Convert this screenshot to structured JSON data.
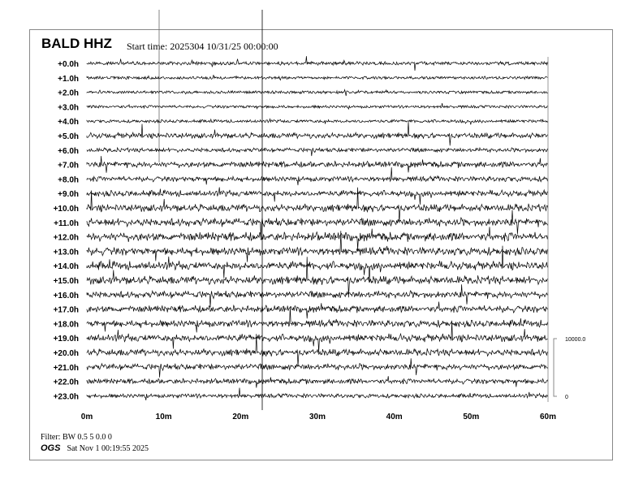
{
  "header": {
    "station": "BALD HHZ",
    "start_time": "Start time: 2025304 10/31/25 00:00:00"
  },
  "footer": {
    "filter": "Filter: BW 0.5 5 0.0 0",
    "org": "OGS",
    "timestamp": "Sat Nov  1 00:19:55 2025"
  },
  "chart_data": {
    "type": "line",
    "title": "BALD HHZ",
    "row_labels": [
      "+0.0h",
      "+1.0h",
      "+2.0h",
      "+3.0h",
      "+4.0h",
      "+5.0h",
      "+6.0h",
      "+7.0h",
      "+8.0h",
      "+9.0h",
      "+10.0h",
      "+11.0h",
      "+12.0h",
      "+13.0h",
      "+14.0h",
      "+15.0h",
      "+16.0h",
      "+17.0h",
      "+18.0h",
      "+19.0h",
      "+20.0h",
      "+21.0h",
      "+22.0h",
      "+23.0h"
    ],
    "x_ticks": [
      "0m",
      "10m",
      "20m",
      "30m",
      "40m",
      "50m",
      "60m"
    ],
    "xlim": [
      0,
      60
    ],
    "scale_bar": {
      "top_label": "10000.0",
      "bottom_label": "0"
    },
    "trace_color": "#000000"
  }
}
